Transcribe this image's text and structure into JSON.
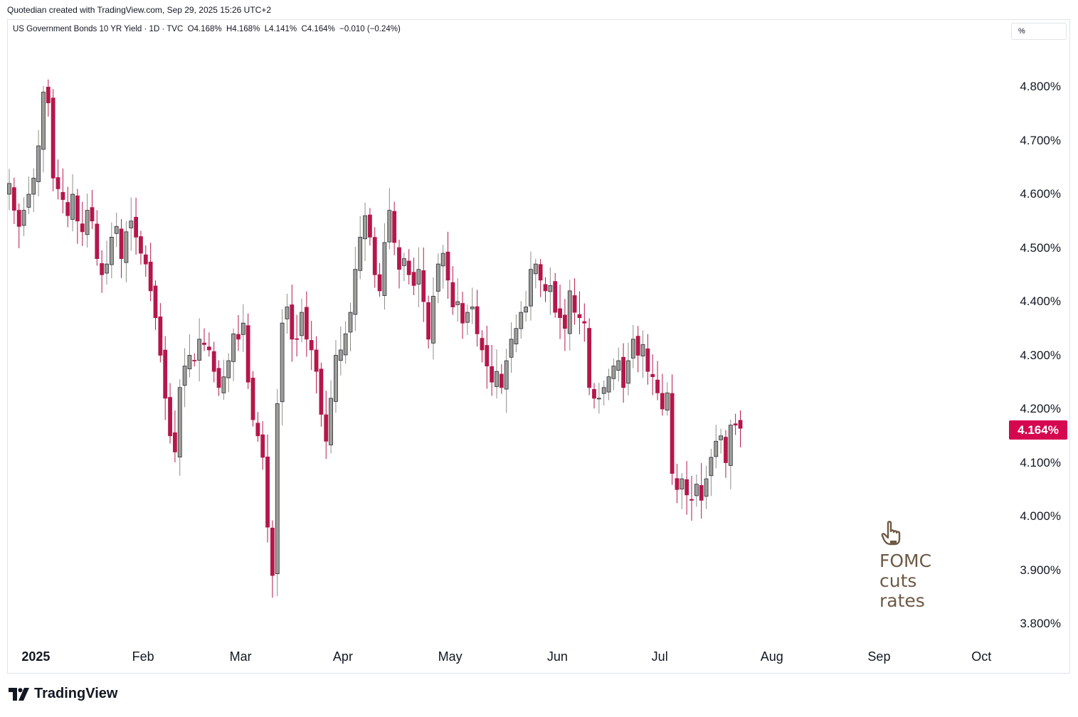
{
  "header": {
    "attribution": "Quotedian created with TradingView.com, Sep 29, 2025 15:26 UTC+2"
  },
  "legend": {
    "text": "US Government Bonds 10 YR Yield · 1D · TVC  O4.168%  H4.168%  L4.141%  C4.164%  −0.010 (−0.24%)"
  },
  "scale_unit": "%",
  "last_price_label": "4.164%",
  "annotation": {
    "line1": "FOMC",
    "line2": "cuts",
    "line3": "rates"
  },
  "footer": {
    "logo_text": "TradingView"
  },
  "colors": {
    "up": "#8c8c86",
    "down": "#b5174a",
    "up_wick": "#8c8c86",
    "down_wick": "#b5174a",
    "price_tag": "#d5084f",
    "annotation": "#6d5a45"
  },
  "chart_data": {
    "type": "candlestick",
    "title": "US Government Bonds 10 YR Yield",
    "interval": "1D",
    "source": "TVC",
    "y_ticks": [
      "4.800%",
      "4.700%",
      "4.600%",
      "4.500%",
      "4.400%",
      "4.300%",
      "4.200%",
      "4.100%",
      "4.000%",
      "3.900%",
      "3.800%"
    ],
    "y_tick_values": [
      4.8,
      4.7,
      4.6,
      4.5,
      4.4,
      4.3,
      4.2,
      4.1,
      4.0,
      3.9,
      3.8
    ],
    "x_ticks": [
      {
        "label": "2025",
        "date": "2025-01-02",
        "year": true
      },
      {
        "label": "Feb",
        "date": "2025-02-03"
      },
      {
        "label": "Mar",
        "date": "2025-03-03"
      },
      {
        "label": "Apr",
        "date": "2025-04-01"
      },
      {
        "label": "May",
        "date": "2025-05-01"
      },
      {
        "label": "Jun",
        "date": "2025-06-02"
      },
      {
        "label": "Jul",
        "date": "2025-07-01"
      },
      {
        "label": "Aug",
        "date": "2025-08-01"
      },
      {
        "label": "Sep",
        "date": "2025-09-02"
      },
      {
        "label": "Oct",
        "date": "2025-10-01"
      }
    ],
    "first_date": "2024-12-27",
    "last_close": 4.164,
    "closes": [
      4.62,
      4.57,
      4.54,
      4.57,
      4.6,
      4.63,
      4.69,
      4.79,
      4.77,
      4.63,
      4.61,
      4.59,
      4.56,
      4.6,
      4.55,
      4.53,
      4.57,
      4.55,
      4.48,
      4.45,
      4.47,
      4.52,
      4.54,
      4.48,
      4.53,
      4.55,
      4.52,
      4.49,
      4.47,
      4.42,
      4.37,
      4.3,
      4.22,
      4.15,
      4.12,
      4.24,
      4.28,
      4.3,
      4.29,
      4.33,
      4.32,
      4.31,
      4.27,
      4.24,
      4.26,
      4.29,
      4.34,
      4.33,
      4.36,
      4.25,
      4.18,
      4.15,
      4.11,
      3.98,
      3.89,
      4.21,
      4.36,
      4.39,
      4.33,
      4.33,
      4.38,
      4.33,
      4.31,
      4.27,
      4.19,
      4.14,
      4.22,
      4.3,
      4.31,
      4.34,
      4.38,
      4.46,
      4.52,
      4.56,
      4.52,
      4.45,
      4.42,
      4.51,
      4.57,
      4.51,
      4.46,
      4.48,
      4.45,
      4.43,
      4.46,
      4.4,
      4.33,
      4.41,
      4.47,
      4.49,
      4.44,
      4.39,
      4.4,
      4.36,
      4.38,
      4.39,
      4.34,
      4.31,
      4.28,
      4.25,
      4.27,
      4.24,
      4.29,
      4.33,
      4.35,
      4.38,
      4.39,
      4.46,
      4.47,
      4.44,
      4.42,
      4.43,
      4.38,
      4.37,
      4.35,
      4.42,
      4.38,
      4.37,
      4.36,
      4.24,
      4.22,
      4.22,
      4.24,
      4.26,
      4.28,
      4.29,
      4.24,
      4.29,
      4.33,
      4.3,
      4.32,
      4.27,
      4.26,
      4.23,
      4.2,
      4.23,
      4.08,
      4.05,
      4.07,
      4.04,
      4.03,
      4.06,
      4.03,
      4.07,
      4.11,
      4.14,
      4.15,
      4.1,
      4.17,
      4.17,
      4.164
    ]
  }
}
